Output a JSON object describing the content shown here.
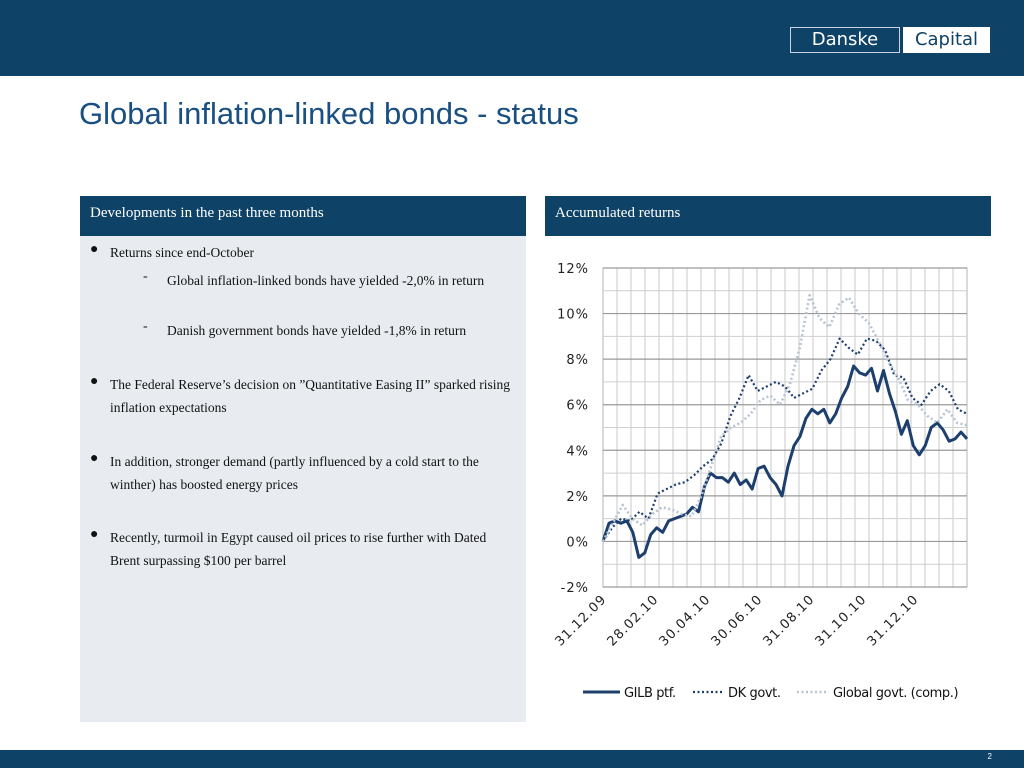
{
  "header": {
    "logo_left": "Danske",
    "logo_right": "Capital"
  },
  "title": "Global inflation-linked bonds - status",
  "left_panel": {
    "heading": "Developments in the past three months",
    "bullets": [
      "Returns since end-October",
      "The Federal Reserve’s decision on ”Quantitative Easing II” sparked rising inflation expectations",
      "In addition, stronger demand (partly influenced by a cold start to the winther) has boosted energy prices",
      "Recently, turmoil in Egypt caused oil prices to rise further with Dated Brent surpassing $100 per barrel"
    ],
    "sub_bullets": [
      "Global inflation-linked bonds have yielded -2,0% in return",
      "Danish government bonds have yielded -1,8% in return"
    ],
    "dash": "-"
  },
  "right_panel": {
    "heading": "Accumulated returns"
  },
  "chart_data": {
    "type": "line",
    "y_ticks": [
      "12%",
      "10%",
      "8%",
      "6%",
      "4%",
      "2%",
      "0%",
      "-2%"
    ],
    "x_ticks": [
      "31.12.09",
      "28.02.10",
      "30.04.10",
      "30.06.10",
      "31.08.10",
      "31.10.10",
      "31.12.10"
    ],
    "ylim": [
      -2,
      12
    ],
    "grid": true,
    "legend_position": "bottom",
    "colors": {
      "gilb": "#1c3f6e",
      "dk": "#1c3f6e",
      "global": "#b9c4d3"
    },
    "series": [
      {
        "name": "GILB ptf.",
        "style": "solid",
        "values": [
          0.0,
          0.8,
          0.9,
          0.8,
          0.9,
          0.4,
          -0.7,
          -0.5,
          0.3,
          0.6,
          0.4,
          0.9,
          1.0,
          1.1,
          1.2,
          1.5,
          1.3,
          2.4,
          3.0,
          2.8,
          2.8,
          2.6,
          3.0,
          2.5,
          2.7,
          2.3,
          3.2,
          3.3,
          2.8,
          2.5,
          2.0,
          3.3,
          4.2,
          4.6,
          5.4,
          5.8,
          5.6,
          5.8,
          5.2,
          5.6,
          6.3,
          6.8,
          7.7,
          7.4,
          7.3,
          7.6,
          6.6,
          7.5,
          6.5,
          5.7,
          4.7,
          5.3,
          4.2,
          3.8,
          4.2,
          5.0,
          5.2,
          4.9,
          4.4,
          4.5,
          4.8,
          4.5
        ]
      },
      {
        "name": "DK govt.",
        "style": "dotted",
        "values": [
          0.0,
          0.6,
          1.0,
          0.9,
          1.3,
          1.0,
          2.1,
          2.3,
          2.5,
          2.6,
          2.9,
          3.3,
          3.6,
          4.3,
          5.5,
          6.3,
          7.3,
          6.6,
          6.8,
          7.0,
          6.8,
          6.3,
          6.5,
          6.7,
          7.5,
          8.0,
          8.9,
          8.5,
          8.2,
          8.9,
          8.8,
          8.4,
          7.3,
          7.2,
          6.3,
          6.0,
          6.6,
          6.9,
          6.6,
          5.8,
          5.6
        ]
      },
      {
        "name": "Global govt. (comp.)",
        "style": "dotted",
        "values": [
          0.0,
          0.8,
          1.6,
          1.0,
          0.7,
          1.2,
          1.5,
          1.4,
          1.2,
          1.1,
          2.0,
          3.3,
          4.6,
          5.0,
          5.2,
          5.6,
          6.2,
          6.4,
          6.0,
          6.9,
          8.5,
          10.8,
          9.8,
          9.4,
          10.4,
          10.7,
          10.0,
          9.6,
          8.8,
          7.9,
          7.2,
          6.2,
          6.0,
          5.5,
          5.2,
          5.8,
          5.2,
          5.1
        ]
      }
    ]
  },
  "footer": {
    "page": "2"
  }
}
